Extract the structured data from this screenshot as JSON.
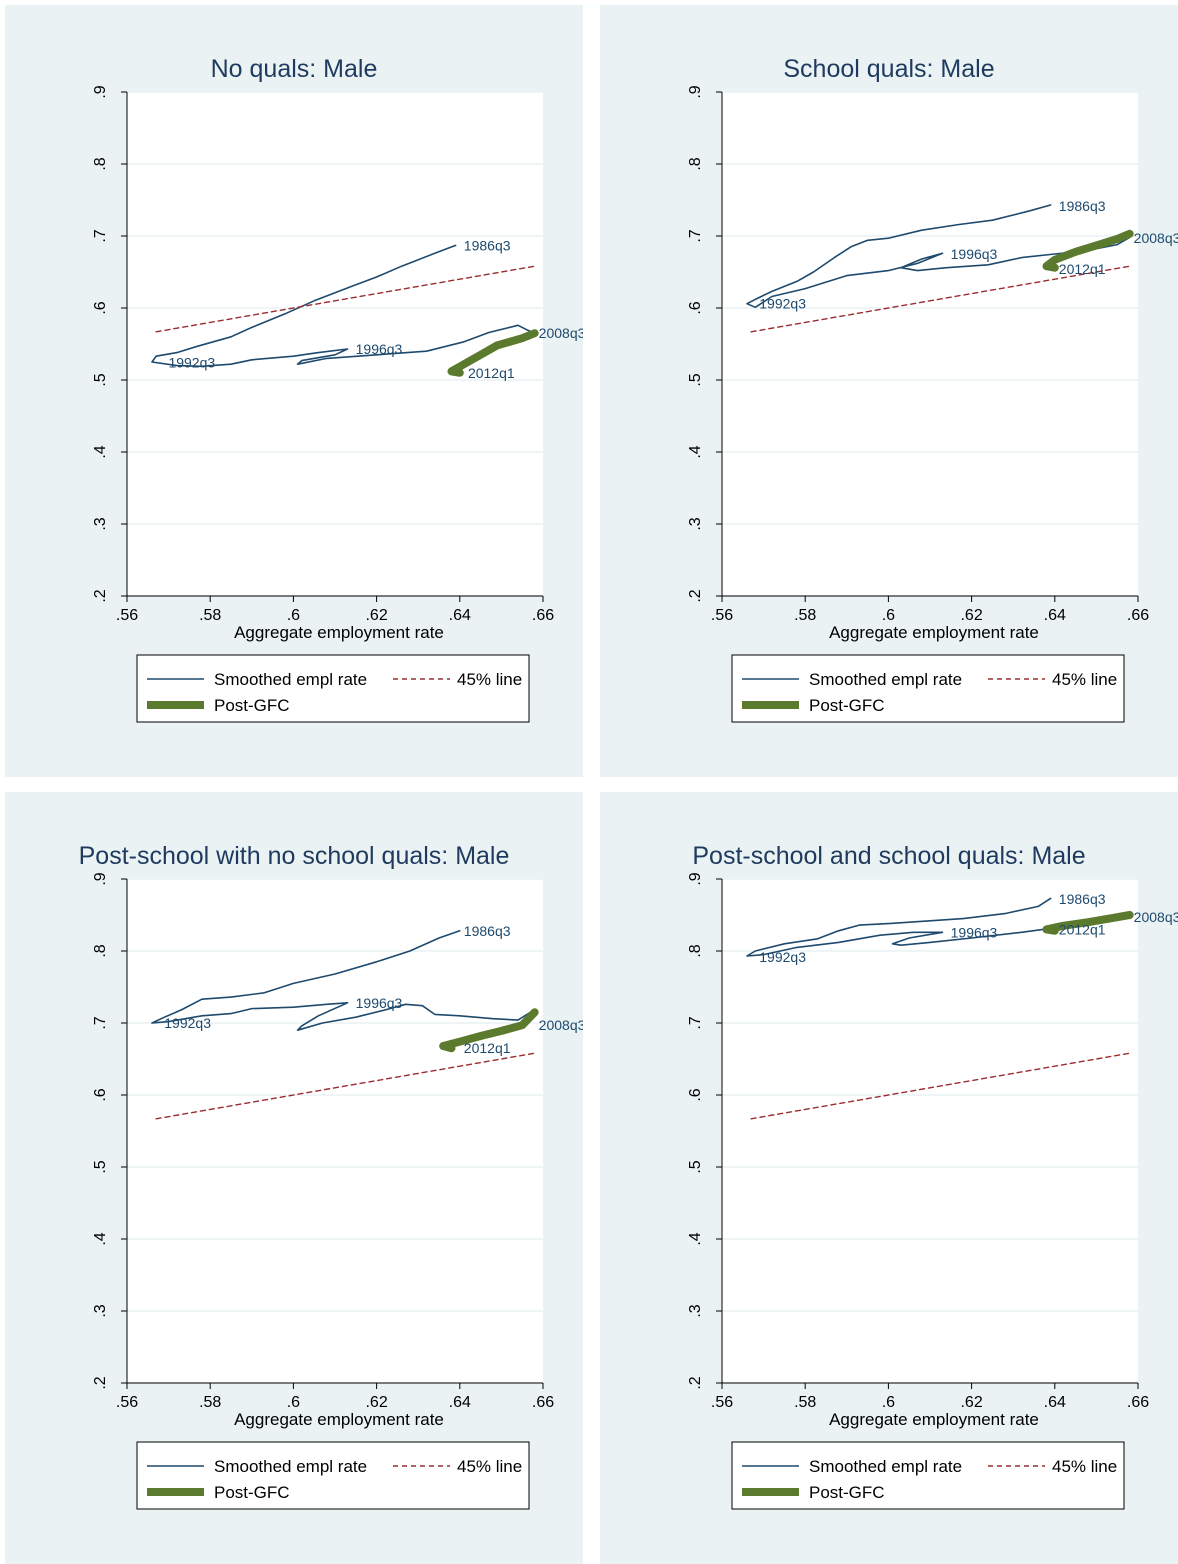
{
  "colors": {
    "smoothed": "#1e4a6e",
    "line45": "#9b2d30",
    "postgfc": "#5b7a2e",
    "panel_bg": "#eaf2f3"
  },
  "legend": {
    "smoothed": "Smoothed empl rate",
    "line45": "45% line",
    "postgfc": "Post-GFC"
  },
  "chart_data": [
    {
      "type": "line",
      "title": "No quals: Male",
      "xlabel": "Aggregate employment rate",
      "ylabel": "",
      "xlim": [
        0.56,
        0.66
      ],
      "ylim": [
        0.2,
        0.9
      ],
      "xticks": [
        ".56",
        ".58",
        ".6",
        ".62",
        ".64",
        ".66"
      ],
      "yticks": [
        ".2",
        ".3",
        ".4",
        ".5",
        ".6",
        ".7",
        ".8",
        ".9"
      ],
      "series": [
        {
          "name": "Smoothed empl rate",
          "points": [
            [
              0.639,
              0.687
            ],
            [
              0.634,
              0.676
            ],
            [
              0.626,
              0.658
            ],
            [
              0.62,
              0.643
            ],
            [
              0.614,
              0.63
            ],
            [
              0.605,
              0.61
            ],
            [
              0.598,
              0.592
            ],
            [
              0.59,
              0.573
            ],
            [
              0.585,
              0.56
            ],
            [
              0.577,
              0.547
            ],
            [
              0.572,
              0.538
            ],
            [
              0.567,
              0.533
            ],
            [
              0.566,
              0.525
            ],
            [
              0.572,
              0.52
            ],
            [
              0.578,
              0.519
            ],
            [
              0.585,
              0.522
            ],
            [
              0.59,
              0.528
            ],
            [
              0.6,
              0.533
            ],
            [
              0.606,
              0.538
            ],
            [
              0.613,
              0.543
            ],
            [
              0.61,
              0.535
            ],
            [
              0.602,
              0.527
            ],
            [
              0.601,
              0.522
            ],
            [
              0.608,
              0.53
            ],
            [
              0.62,
              0.535
            ],
            [
              0.632,
              0.54
            ],
            [
              0.641,
              0.553
            ],
            [
              0.647,
              0.566
            ],
            [
              0.654,
              0.576
            ],
            [
              0.656,
              0.57
            ],
            [
              0.658,
              0.565
            ]
          ]
        },
        {
          "name": "45% line",
          "points": [
            [
              0.567,
              0.567
            ],
            [
              0.658,
              0.658
            ]
          ]
        },
        {
          "name": "Post-GFC",
          "points": [
            [
              0.658,
              0.565
            ],
            [
              0.655,
              0.558
            ],
            [
              0.649,
              0.548
            ],
            [
              0.645,
              0.535
            ],
            [
              0.641,
              0.522
            ],
            [
              0.638,
              0.512
            ],
            [
              0.64,
              0.51
            ]
          ]
        }
      ],
      "labels": [
        {
          "text": "1986q3",
          "x": 0.64,
          "y": 0.687
        },
        {
          "text": "1996q3",
          "x": 0.614,
          "y": 0.543
        },
        {
          "text": "1992q3",
          "x": 0.569,
          "y": 0.524
        },
        {
          "text": "2008q3",
          "x": 0.658,
          "y": 0.565
        },
        {
          "text": "2012q1",
          "x": 0.641,
          "y": 0.51
        }
      ]
    },
    {
      "type": "line",
      "title": "School quals: Male",
      "xlabel": "Aggregate employment rate",
      "ylabel": "",
      "xlim": [
        0.56,
        0.66
      ],
      "ylim": [
        0.2,
        0.9
      ],
      "xticks": [
        ".56",
        ".58",
        ".6",
        ".62",
        ".64",
        ".66"
      ],
      "yticks": [
        ".2",
        ".3",
        ".4",
        ".5",
        ".6",
        ".7",
        ".8",
        ".9"
      ],
      "series": [
        {
          "name": "Smoothed empl rate",
          "points": [
            [
              0.639,
              0.743
            ],
            [
              0.634,
              0.735
            ],
            [
              0.625,
              0.722
            ],
            [
              0.617,
              0.716
            ],
            [
              0.608,
              0.708
            ],
            [
              0.6,
              0.697
            ],
            [
              0.595,
              0.694
            ],
            [
              0.591,
              0.685
            ],
            [
              0.587,
              0.67
            ],
            [
              0.582,
              0.65
            ],
            [
              0.578,
              0.637
            ],
            [
              0.572,
              0.623
            ],
            [
              0.568,
              0.612
            ],
            [
              0.566,
              0.606
            ],
            [
              0.568,
              0.601
            ],
            [
              0.572,
              0.616
            ],
            [
              0.58,
              0.627
            ],
            [
              0.59,
              0.645
            ],
            [
              0.6,
              0.652
            ],
            [
              0.607,
              0.662
            ],
            [
              0.613,
              0.676
            ],
            [
              0.608,
              0.668
            ],
            [
              0.603,
              0.656
            ],
            [
              0.607,
              0.652
            ],
            [
              0.614,
              0.656
            ],
            [
              0.624,
              0.66
            ],
            [
              0.632,
              0.67
            ],
            [
              0.64,
              0.675
            ],
            [
              0.648,
              0.68
            ],
            [
              0.655,
              0.688
            ],
            [
              0.658,
              0.698
            ]
          ]
        },
        {
          "name": "45% line",
          "points": [
            [
              0.567,
              0.567
            ],
            [
              0.658,
              0.658
            ]
          ]
        },
        {
          "name": "Post-GFC",
          "points": [
            [
              0.658,
              0.703
            ],
            [
              0.655,
              0.696
            ],
            [
              0.65,
              0.687
            ],
            [
              0.645,
              0.678
            ],
            [
              0.64,
              0.667
            ],
            [
              0.638,
              0.658
            ],
            [
              0.64,
              0.656
            ]
          ]
        }
      ],
      "labels": [
        {
          "text": "1986q3",
          "x": 0.64,
          "y": 0.742
        },
        {
          "text": "1996q3",
          "x": 0.614,
          "y": 0.675
        },
        {
          "text": "1992q3",
          "x": 0.568,
          "y": 0.606
        },
        {
          "text": "2008q3",
          "x": 0.658,
          "y": 0.697
        },
        {
          "text": "2012q1",
          "x": 0.64,
          "y": 0.654
        }
      ]
    },
    {
      "type": "line",
      "title": "Post-school with no school quals: Male",
      "xlabel": "Aggregate employment rate",
      "ylabel": "",
      "xlim": [
        0.56,
        0.66
      ],
      "ylim": [
        0.2,
        0.9
      ],
      "xticks": [
        ".56",
        ".58",
        ".6",
        ".62",
        ".64",
        ".66"
      ],
      "yticks": [
        ".2",
        ".3",
        ".4",
        ".5",
        ".6",
        ".7",
        ".8",
        ".9"
      ],
      "series": [
        {
          "name": "Smoothed empl rate",
          "points": [
            [
              0.64,
              0.828
            ],
            [
              0.635,
              0.818
            ],
            [
              0.628,
              0.8
            ],
            [
              0.62,
              0.785
            ],
            [
              0.61,
              0.768
            ],
            [
              0.6,
              0.755
            ],
            [
              0.593,
              0.742
            ],
            [
              0.585,
              0.736
            ],
            [
              0.578,
              0.733
            ],
            [
              0.573,
              0.718
            ],
            [
              0.569,
              0.708
            ],
            [
              0.566,
              0.7
            ],
            [
              0.57,
              0.702
            ],
            [
              0.578,
              0.71
            ],
            [
              0.585,
              0.713
            ],
            [
              0.59,
              0.72
            ],
            [
              0.6,
              0.722
            ],
            [
              0.608,
              0.726
            ],
            [
              0.613,
              0.728
            ],
            [
              0.606,
              0.71
            ],
            [
              0.602,
              0.696
            ],
            [
              0.601,
              0.69
            ],
            [
              0.607,
              0.7
            ],
            [
              0.615,
              0.708
            ],
            [
              0.622,
              0.718
            ],
            [
              0.627,
              0.726
            ],
            [
              0.631,
              0.724
            ],
            [
              0.634,
              0.712
            ],
            [
              0.64,
              0.71
            ],
            [
              0.648,
              0.706
            ],
            [
              0.654,
              0.704
            ],
            [
              0.657,
              0.715
            ]
          ]
        },
        {
          "name": "45% line",
          "points": [
            [
              0.567,
              0.567
            ],
            [
              0.658,
              0.658
            ]
          ]
        },
        {
          "name": "Post-GFC",
          "points": [
            [
              0.658,
              0.715
            ],
            [
              0.655,
              0.697
            ],
            [
              0.65,
              0.689
            ],
            [
              0.645,
              0.682
            ],
            [
              0.64,
              0.674
            ],
            [
              0.636,
              0.668
            ],
            [
              0.638,
              0.665
            ]
          ]
        }
      ],
      "labels": [
        {
          "text": "1986q3",
          "x": 0.64,
          "y": 0.828
        },
        {
          "text": "1996q3",
          "x": 0.614,
          "y": 0.728
        },
        {
          "text": "1992q3",
          "x": 0.568,
          "y": 0.7
        },
        {
          "text": "2008q3",
          "x": 0.658,
          "y": 0.697
        },
        {
          "text": "2012q1",
          "x": 0.64,
          "y": 0.665
        }
      ]
    },
    {
      "type": "line",
      "title": "Post-school and school quals: Male",
      "xlabel": "Aggregate employment rate",
      "ylabel": "",
      "xlim": [
        0.56,
        0.66
      ],
      "ylim": [
        0.2,
        0.9
      ],
      "xticks": [
        ".56",
        ".58",
        ".6",
        ".62",
        ".64",
        ".66"
      ],
      "yticks": [
        ".2",
        ".3",
        ".4",
        ".5",
        ".6",
        ".7",
        ".8",
        ".9"
      ],
      "series": [
        {
          "name": "Smoothed empl rate",
          "points": [
            [
              0.639,
              0.873
            ],
            [
              0.636,
              0.862
            ],
            [
              0.628,
              0.852
            ],
            [
              0.618,
              0.845
            ],
            [
              0.6,
              0.838
            ],
            [
              0.593,
              0.836
            ],
            [
              0.588,
              0.828
            ],
            [
              0.583,
              0.817
            ],
            [
              0.575,
              0.81
            ],
            [
              0.568,
              0.8
            ],
            [
              0.566,
              0.793
            ],
            [
              0.57,
              0.795
            ],
            [
              0.578,
              0.805
            ],
            [
              0.588,
              0.812
            ],
            [
              0.598,
              0.822
            ],
            [
              0.606,
              0.826
            ],
            [
              0.613,
              0.826
            ],
            [
              0.605,
              0.818
            ],
            [
              0.601,
              0.81
            ],
            [
              0.603,
              0.808
            ],
            [
              0.61,
              0.812
            ],
            [
              0.62,
              0.818
            ],
            [
              0.632,
              0.826
            ],
            [
              0.645,
              0.836
            ],
            [
              0.655,
              0.844
            ],
            [
              0.658,
              0.849
            ]
          ]
        },
        {
          "name": "45% line",
          "points": [
            [
              0.567,
              0.567
            ],
            [
              0.658,
              0.658
            ]
          ]
        },
        {
          "name": "Post-GFC",
          "points": [
            [
              0.658,
              0.85
            ],
            [
              0.654,
              0.846
            ],
            [
              0.648,
              0.84
            ],
            [
              0.642,
              0.835
            ],
            [
              0.638,
              0.83
            ],
            [
              0.64,
              0.828
            ]
          ]
        }
      ],
      "labels": [
        {
          "text": "1986q3",
          "x": 0.64,
          "y": 0.872
        },
        {
          "text": "1996q3",
          "x": 0.614,
          "y": 0.826
        },
        {
          "text": "1992q3",
          "x": 0.568,
          "y": 0.792
        },
        {
          "text": "2008q3",
          "x": 0.658,
          "y": 0.847
        },
        {
          "text": "2012q1",
          "x": 0.64,
          "y": 0.83
        }
      ]
    }
  ]
}
